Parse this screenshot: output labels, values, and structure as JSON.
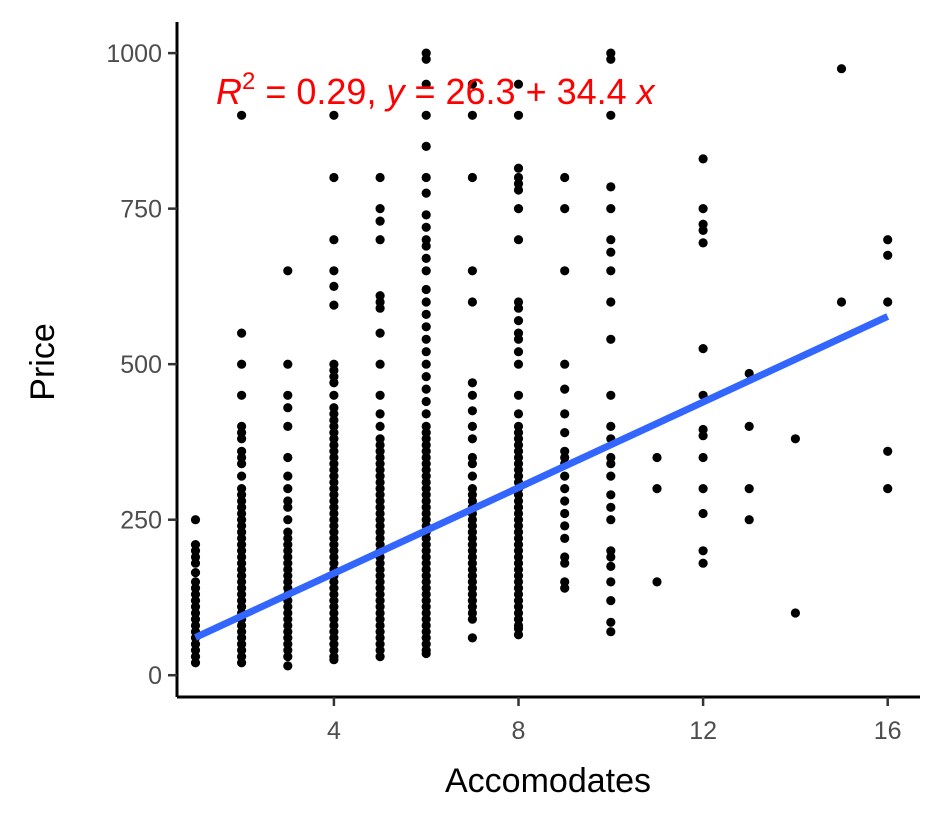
{
  "chart_data": {
    "type": "scatter",
    "xlabel": "Accomodates",
    "ylabel": "Price",
    "xlim": [
      0.6,
      16.7
    ],
    "ylim": [
      -35,
      1050
    ],
    "xticks": [
      4,
      8,
      12,
      16
    ],
    "yticks": [
      0,
      250,
      500,
      750,
      1000
    ],
    "grid": false,
    "point_color": "#000000",
    "fit_color": "#3366ff",
    "annotation_color": "#ff0000",
    "annotation": {
      "r_symbol": "R",
      "r_exponent": "2",
      "r_value": " = 0.29, ",
      "y_symbol": "y",
      "equation": " = 26.3 + 34.4 ",
      "x_symbol": "x"
    },
    "fit": {
      "intercept": 26.3,
      "slope": 34.4,
      "x_range": [
        1,
        16
      ]
    },
    "points": [
      [
        1,
        20
      ],
      [
        1,
        30
      ],
      [
        1,
        40
      ],
      [
        1,
        50
      ],
      [
        1,
        60
      ],
      [
        1,
        70
      ],
      [
        1,
        80
      ],
      [
        1,
        90
      ],
      [
        1,
        100
      ],
      [
        1,
        110
      ],
      [
        1,
        120
      ],
      [
        1,
        130
      ],
      [
        1,
        140
      ],
      [
        1,
        150
      ],
      [
        1,
        165
      ],
      [
        1,
        180
      ],
      [
        1,
        190
      ],
      [
        1,
        200
      ],
      [
        1,
        210
      ],
      [
        1,
        250
      ],
      [
        2,
        20
      ],
      [
        2,
        30
      ],
      [
        2,
        40
      ],
      [
        2,
        50
      ],
      [
        2,
        60
      ],
      [
        2,
        70
      ],
      [
        2,
        80
      ],
      [
        2,
        90
      ],
      [
        2,
        100
      ],
      [
        2,
        110
      ],
      [
        2,
        120
      ],
      [
        2,
        130
      ],
      [
        2,
        140
      ],
      [
        2,
        150
      ],
      [
        2,
        160
      ],
      [
        2,
        170
      ],
      [
        2,
        180
      ],
      [
        2,
        190
      ],
      [
        2,
        200
      ],
      [
        2,
        210
      ],
      [
        2,
        220
      ],
      [
        2,
        230
      ],
      [
        2,
        240
      ],
      [
        2,
        250
      ],
      [
        2,
        260
      ],
      [
        2,
        270
      ],
      [
        2,
        280
      ],
      [
        2,
        290
      ],
      [
        2,
        300
      ],
      [
        2,
        320
      ],
      [
        2,
        340
      ],
      [
        2,
        350
      ],
      [
        2,
        360
      ],
      [
        2,
        380
      ],
      [
        2,
        390
      ],
      [
        2,
        400
      ],
      [
        2,
        450
      ],
      [
        2,
        500
      ],
      [
        2,
        550
      ],
      [
        2,
        900
      ],
      [
        3,
        15
      ],
      [
        3,
        30
      ],
      [
        3,
        40
      ],
      [
        3,
        50
      ],
      [
        3,
        60
      ],
      [
        3,
        70
      ],
      [
        3,
        80
      ],
      [
        3,
        90
      ],
      [
        3,
        100
      ],
      [
        3,
        110
      ],
      [
        3,
        120
      ],
      [
        3,
        130
      ],
      [
        3,
        140
      ],
      [
        3,
        150
      ],
      [
        3,
        160
      ],
      [
        3,
        170
      ],
      [
        3,
        180
      ],
      [
        3,
        190
      ],
      [
        3,
        200
      ],
      [
        3,
        210
      ],
      [
        3,
        220
      ],
      [
        3,
        230
      ],
      [
        3,
        250
      ],
      [
        3,
        270
      ],
      [
        3,
        280
      ],
      [
        3,
        300
      ],
      [
        3,
        320
      ],
      [
        3,
        350
      ],
      [
        3,
        400
      ],
      [
        3,
        430
      ],
      [
        3,
        450
      ],
      [
        3,
        500
      ],
      [
        3,
        650
      ],
      [
        4,
        25
      ],
      [
        4,
        30
      ],
      [
        4,
        40
      ],
      [
        4,
        50
      ],
      [
        4,
        60
      ],
      [
        4,
        70
      ],
      [
        4,
        80
      ],
      [
        4,
        90
      ],
      [
        4,
        100
      ],
      [
        4,
        110
      ],
      [
        4,
        120
      ],
      [
        4,
        130
      ],
      [
        4,
        140
      ],
      [
        4,
        150
      ],
      [
        4,
        160
      ],
      [
        4,
        170
      ],
      [
        4,
        180
      ],
      [
        4,
        190
      ],
      [
        4,
        200
      ],
      [
        4,
        210
      ],
      [
        4,
        220
      ],
      [
        4,
        230
      ],
      [
        4,
        240
      ],
      [
        4,
        250
      ],
      [
        4,
        260
      ],
      [
        4,
        270
      ],
      [
        4,
        280
      ],
      [
        4,
        290
      ],
      [
        4,
        300
      ],
      [
        4,
        310
      ],
      [
        4,
        320
      ],
      [
        4,
        330
      ],
      [
        4,
        340
      ],
      [
        4,
        350
      ],
      [
        4,
        360
      ],
      [
        4,
        370
      ],
      [
        4,
        380
      ],
      [
        4,
        390
      ],
      [
        4,
        400
      ],
      [
        4,
        410
      ],
      [
        4,
        420
      ],
      [
        4,
        430
      ],
      [
        4,
        450
      ],
      [
        4,
        470
      ],
      [
        4,
        480
      ],
      [
        4,
        490
      ],
      [
        4,
        500
      ],
      [
        4,
        595
      ],
      [
        4,
        625
      ],
      [
        4,
        650
      ],
      [
        4,
        700
      ],
      [
        4,
        800
      ],
      [
        4,
        900
      ],
      [
        5,
        30
      ],
      [
        5,
        40
      ],
      [
        5,
        50
      ],
      [
        5,
        60
      ],
      [
        5,
        70
      ],
      [
        5,
        80
      ],
      [
        5,
        90
      ],
      [
        5,
        100
      ],
      [
        5,
        110
      ],
      [
        5,
        120
      ],
      [
        5,
        130
      ],
      [
        5,
        140
      ],
      [
        5,
        150
      ],
      [
        5,
        160
      ],
      [
        5,
        170
      ],
      [
        5,
        180
      ],
      [
        5,
        190
      ],
      [
        5,
        200
      ],
      [
        5,
        210
      ],
      [
        5,
        220
      ],
      [
        5,
        230
      ],
      [
        5,
        240
      ],
      [
        5,
        250
      ],
      [
        5,
        260
      ],
      [
        5,
        270
      ],
      [
        5,
        280
      ],
      [
        5,
        290
      ],
      [
        5,
        300
      ],
      [
        5,
        310
      ],
      [
        5,
        320
      ],
      [
        5,
        330
      ],
      [
        5,
        340
      ],
      [
        5,
        350
      ],
      [
        5,
        360
      ],
      [
        5,
        370
      ],
      [
        5,
        380
      ],
      [
        5,
        400
      ],
      [
        5,
        420
      ],
      [
        5,
        450
      ],
      [
        5,
        500
      ],
      [
        5,
        550
      ],
      [
        5,
        590
      ],
      [
        5,
        600
      ],
      [
        5,
        610
      ],
      [
        5,
        700
      ],
      [
        5,
        730
      ],
      [
        5,
        750
      ],
      [
        5,
        800
      ],
      [
        6,
        35
      ],
      [
        6,
        40
      ],
      [
        6,
        50
      ],
      [
        6,
        60
      ],
      [
        6,
        70
      ],
      [
        6,
        80
      ],
      [
        6,
        90
      ],
      [
        6,
        100
      ],
      [
        6,
        110
      ],
      [
        6,
        120
      ],
      [
        6,
        130
      ],
      [
        6,
        140
      ],
      [
        6,
        150
      ],
      [
        6,
        160
      ],
      [
        6,
        170
      ],
      [
        6,
        180
      ],
      [
        6,
        190
      ],
      [
        6,
        200
      ],
      [
        6,
        210
      ],
      [
        6,
        220
      ],
      [
        6,
        230
      ],
      [
        6,
        240
      ],
      [
        6,
        250
      ],
      [
        6,
        260
      ],
      [
        6,
        270
      ],
      [
        6,
        280
      ],
      [
        6,
        290
      ],
      [
        6,
        300
      ],
      [
        6,
        310
      ],
      [
        6,
        320
      ],
      [
        6,
        330
      ],
      [
        6,
        340
      ],
      [
        6,
        350
      ],
      [
        6,
        360
      ],
      [
        6,
        370
      ],
      [
        6,
        380
      ],
      [
        6,
        390
      ],
      [
        6,
        400
      ],
      [
        6,
        420
      ],
      [
        6,
        440
      ],
      [
        6,
        460
      ],
      [
        6,
        480
      ],
      [
        6,
        500
      ],
      [
        6,
        520
      ],
      [
        6,
        540
      ],
      [
        6,
        560
      ],
      [
        6,
        580
      ],
      [
        6,
        600
      ],
      [
        6,
        620
      ],
      [
        6,
        650
      ],
      [
        6,
        670
      ],
      [
        6,
        690
      ],
      [
        6,
        700
      ],
      [
        6,
        720
      ],
      [
        6,
        740
      ],
      [
        6,
        775
      ],
      [
        6,
        800
      ],
      [
        6,
        850
      ],
      [
        6,
        900
      ],
      [
        6,
        950
      ],
      [
        6,
        990
      ],
      [
        6,
        1000
      ],
      [
        7,
        60
      ],
      [
        7,
        90
      ],
      [
        7,
        100
      ],
      [
        7,
        110
      ],
      [
        7,
        120
      ],
      [
        7,
        130
      ],
      [
        7,
        140
      ],
      [
        7,
        150
      ],
      [
        7,
        160
      ],
      [
        7,
        170
      ],
      [
        7,
        180
      ],
      [
        7,
        190
      ],
      [
        7,
        200
      ],
      [
        7,
        210
      ],
      [
        7,
        220
      ],
      [
        7,
        230
      ],
      [
        7,
        240
      ],
      [
        7,
        250
      ],
      [
        7,
        260
      ],
      [
        7,
        270
      ],
      [
        7,
        280
      ],
      [
        7,
        290
      ],
      [
        7,
        300
      ],
      [
        7,
        320
      ],
      [
        7,
        340
      ],
      [
        7,
        350
      ],
      [
        7,
        380
      ],
      [
        7,
        400
      ],
      [
        7,
        425
      ],
      [
        7,
        450
      ],
      [
        7,
        470
      ],
      [
        7,
        600
      ],
      [
        7,
        650
      ],
      [
        7,
        800
      ],
      [
        7,
        900
      ],
      [
        7,
        950
      ],
      [
        8,
        65
      ],
      [
        8,
        75
      ],
      [
        8,
        80
      ],
      [
        8,
        90
      ],
      [
        8,
        100
      ],
      [
        8,
        110
      ],
      [
        8,
        120
      ],
      [
        8,
        130
      ],
      [
        8,
        140
      ],
      [
        8,
        150
      ],
      [
        8,
        160
      ],
      [
        8,
        170
      ],
      [
        8,
        180
      ],
      [
        8,
        190
      ],
      [
        8,
        200
      ],
      [
        8,
        210
      ],
      [
        8,
        220
      ],
      [
        8,
        230
      ],
      [
        8,
        240
      ],
      [
        8,
        250
      ],
      [
        8,
        260
      ],
      [
        8,
        270
      ],
      [
        8,
        280
      ],
      [
        8,
        290
      ],
      [
        8,
        300
      ],
      [
        8,
        310
      ],
      [
        8,
        320
      ],
      [
        8,
        330
      ],
      [
        8,
        340
      ],
      [
        8,
        350
      ],
      [
        8,
        360
      ],
      [
        8,
        370
      ],
      [
        8,
        380
      ],
      [
        8,
        390
      ],
      [
        8,
        400
      ],
      [
        8,
        420
      ],
      [
        8,
        450
      ],
      [
        8,
        500
      ],
      [
        8,
        520
      ],
      [
        8,
        540
      ],
      [
        8,
        550
      ],
      [
        8,
        570
      ],
      [
        8,
        590
      ],
      [
        8,
        600
      ],
      [
        8,
        700
      ],
      [
        8,
        750
      ],
      [
        8,
        780
      ],
      [
        8,
        790
      ],
      [
        8,
        800
      ],
      [
        8,
        815
      ],
      [
        8,
        900
      ],
      [
        8,
        950
      ],
      [
        9,
        140
      ],
      [
        9,
        150
      ],
      [
        9,
        180
      ],
      [
        9,
        190
      ],
      [
        9,
        220
      ],
      [
        9,
        240
      ],
      [
        9,
        260
      ],
      [
        9,
        280
      ],
      [
        9,
        300
      ],
      [
        9,
        320
      ],
      [
        9,
        340
      ],
      [
        9,
        350
      ],
      [
        9,
        360
      ],
      [
        9,
        390
      ],
      [
        9,
        420
      ],
      [
        9,
        460
      ],
      [
        9,
        500
      ],
      [
        9,
        650
      ],
      [
        9,
        750
      ],
      [
        9,
        800
      ],
      [
        10,
        70
      ],
      [
        10,
        85
      ],
      [
        10,
        120
      ],
      [
        10,
        150
      ],
      [
        10,
        175
      ],
      [
        10,
        190
      ],
      [
        10,
        200
      ],
      [
        10,
        250
      ],
      [
        10,
        270
      ],
      [
        10,
        290
      ],
      [
        10,
        320
      ],
      [
        10,
        340
      ],
      [
        10,
        350
      ],
      [
        10,
        380
      ],
      [
        10,
        400
      ],
      [
        10,
        450
      ],
      [
        10,
        540
      ],
      [
        10,
        600
      ],
      [
        10,
        650
      ],
      [
        10,
        680
      ],
      [
        10,
        700
      ],
      [
        10,
        750
      ],
      [
        10,
        785
      ],
      [
        10,
        900
      ],
      [
        10,
        990
      ],
      [
        10,
        1000
      ],
      [
        11,
        150
      ],
      [
        11,
        300
      ],
      [
        11,
        350
      ],
      [
        12,
        180
      ],
      [
        12,
        200
      ],
      [
        12,
        260
      ],
      [
        12,
        300
      ],
      [
        12,
        350
      ],
      [
        12,
        385
      ],
      [
        12,
        395
      ],
      [
        12,
        450
      ],
      [
        12,
        525
      ],
      [
        12,
        695
      ],
      [
        12,
        715
      ],
      [
        12,
        725
      ],
      [
        12,
        750
      ],
      [
        12,
        830
      ],
      [
        13,
        250
      ],
      [
        13,
        300
      ],
      [
        13,
        400
      ],
      [
        13,
        485
      ],
      [
        14,
        100
      ],
      [
        14,
        380
      ],
      [
        15,
        600
      ],
      [
        15,
        975
      ],
      [
        16,
        300
      ],
      [
        16,
        360
      ],
      [
        16,
        600
      ],
      [
        16,
        675
      ],
      [
        16,
        700
      ]
    ]
  }
}
